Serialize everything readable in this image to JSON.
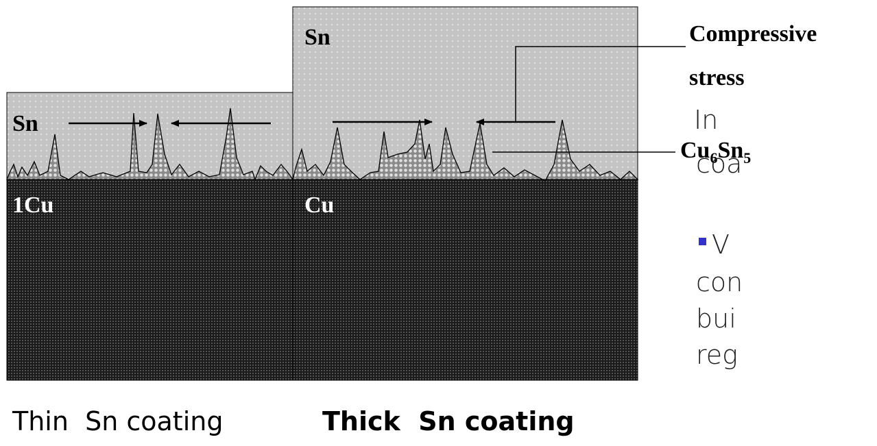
{
  "diagram": {
    "thin": {
      "sn_label": "Sn",
      "cu_label": "1Cu"
    },
    "thick": {
      "sn_label": "Sn",
      "cu_label": "Cu"
    },
    "compressive_stress": [
      "Compressive",
      "stress"
    ],
    "intermetallic": [
      "Cu",
      "6",
      "Sn",
      "5"
    ],
    "captions": {
      "thin": "Thin  Sn coating",
      "thick": "Thick  Sn coating"
    }
  },
  "side_text": {
    "lines": [
      "In",
      "coa"
    ],
    "bullet": "V",
    "bullet_lines": [
      "con",
      "bui",
      "reg"
    ]
  }
}
